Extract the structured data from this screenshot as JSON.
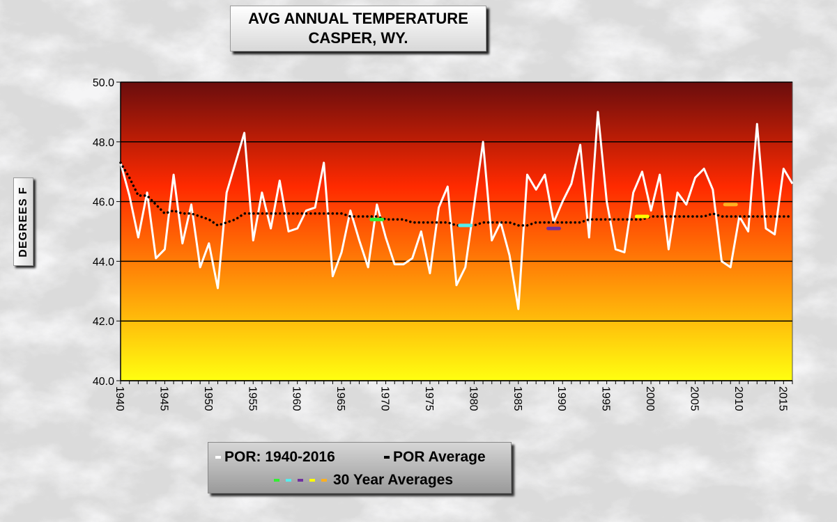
{
  "title_line1": "AVG ANNUAL  TEMPERATURE",
  "title_line2": "CASPER, WY.",
  "ylabel": "DEGREES F",
  "legend": {
    "por_label": "POR: 1940-2016",
    "por_avg_label": "POR Average",
    "thirty_label": "30 Year Averages",
    "thirty_colors": [
      "#33ee33",
      "#55eeee",
      "#7030a0",
      "#ffff00",
      "#ffb020"
    ]
  },
  "colors": {
    "series_line": "#ffffff",
    "por_average": "#000000",
    "gradient_top": "#6a0d0d",
    "gradient_mid": "#ff2a00",
    "gradient_bottom": "#ffff10",
    "gridline": "#000000"
  },
  "chart_data": {
    "type": "line",
    "title": "AVG ANNUAL  TEMPERATURE CASPER, WY.",
    "ylabel": "DEGREES F",
    "ylim": [
      40.0,
      50.0
    ],
    "yticks": [
      "40.0",
      "42.0",
      "44.0",
      "46.0",
      "48.0",
      "50.0"
    ],
    "xlim": [
      1940,
      2016
    ],
    "xticks": [
      "1940",
      "1945",
      "1950",
      "1955",
      "1960",
      "1965",
      "1970",
      "1975",
      "1980",
      "1985",
      "1990",
      "1995",
      "2000",
      "2005",
      "2010",
      "2015"
    ],
    "grid": true,
    "series": [
      {
        "name": "POR: 1940-2016",
        "x": [
          1940,
          1941,
          1942,
          1943,
          1944,
          1945,
          1946,
          1947,
          1948,
          1949,
          1950,
          1951,
          1952,
          1953,
          1954,
          1955,
          1956,
          1957,
          1958,
          1959,
          1960,
          1961,
          1962,
          1963,
          1964,
          1965,
          1966,
          1967,
          1968,
          1969,
          1970,
          1971,
          1972,
          1973,
          1974,
          1975,
          1976,
          1977,
          1978,
          1979,
          1980,
          1981,
          1982,
          1983,
          1984,
          1985,
          1986,
          1987,
          1988,
          1989,
          1990,
          1991,
          1992,
          1993,
          1994,
          1995,
          1996,
          1997,
          1998,
          1999,
          2000,
          2001,
          2002,
          2003,
          2004,
          2005,
          2006,
          2007,
          2008,
          2009,
          2010,
          2011,
          2012,
          2013,
          2014,
          2015,
          2016
        ],
        "y": [
          47.3,
          46.2,
          44.8,
          46.3,
          44.1,
          44.4,
          46.9,
          44.6,
          45.9,
          43.8,
          44.6,
          43.1,
          46.3,
          47.3,
          48.3,
          44.7,
          46.3,
          45.1,
          46.7,
          45.0,
          45.1,
          45.7,
          45.8,
          47.3,
          43.5,
          44.3,
          45.7,
          44.7,
          43.8,
          45.9,
          44.8,
          43.9,
          43.9,
          44.1,
          45.0,
          43.6,
          45.8,
          46.5,
          43.2,
          43.8,
          45.9,
          48.0,
          44.7,
          45.3,
          44.2,
          42.4,
          46.9,
          46.4,
          46.9,
          45.3,
          46.0,
          46.6,
          47.9,
          44.8,
          49.0,
          46.0,
          44.4,
          44.3,
          46.3,
          47.0,
          45.7,
          46.9,
          44.4,
          46.3,
          45.9,
          46.8,
          47.1,
          46.4,
          44.0,
          43.8,
          45.5,
          45.0,
          48.6,
          45.1,
          44.9,
          47.1,
          46.6
        ]
      },
      {
        "name": "POR Average",
        "x": [
          1940,
          1941,
          1942,
          1943,
          1944,
          1945,
          1946,
          1947,
          1948,
          1949,
          1950,
          1951,
          1952,
          1953,
          1954,
          1955,
          1956,
          1957,
          1958,
          1959,
          1960,
          1961,
          1962,
          1963,
          1964,
          1965,
          1966,
          1967,
          1968,
          1969,
          1970,
          1971,
          1972,
          1973,
          1974,
          1975,
          1976,
          1977,
          1978,
          1979,
          1980,
          1981,
          1982,
          1983,
          1984,
          1985,
          1986,
          1987,
          1988,
          1989,
          1990,
          1991,
          1992,
          1993,
          1994,
          1995,
          1996,
          1997,
          1998,
          1999,
          2000,
          2001,
          2002,
          2003,
          2004,
          2005,
          2006,
          2007,
          2008,
          2009,
          2010,
          2011,
          2012,
          2013,
          2014,
          2015,
          2016
        ],
        "y": [
          47.3,
          46.8,
          46.2,
          46.2,
          45.9,
          45.6,
          45.7,
          45.6,
          45.6,
          45.5,
          45.4,
          45.2,
          45.3,
          45.4,
          45.6,
          45.6,
          45.6,
          45.6,
          45.6,
          45.6,
          45.6,
          45.6,
          45.6,
          45.6,
          45.6,
          45.6,
          45.5,
          45.5,
          45.5,
          45.5,
          45.4,
          45.4,
          45.4,
          45.3,
          45.3,
          45.3,
          45.3,
          45.3,
          45.2,
          45.2,
          45.2,
          45.3,
          45.3,
          45.3,
          45.3,
          45.2,
          45.2,
          45.3,
          45.3,
          45.3,
          45.3,
          45.3,
          45.3,
          45.4,
          45.4,
          45.4,
          45.4,
          45.4,
          45.4,
          45.4,
          45.5,
          45.5,
          45.5,
          45.5,
          45.5,
          45.5,
          45.5,
          45.6,
          45.5,
          45.5,
          45.5,
          45.5,
          45.5,
          45.5,
          45.5,
          45.5,
          45.5
        ]
      }
    ],
    "thirty_year_averages": [
      {
        "x": 1969,
        "y": 45.4,
        "color": "#33ee33"
      },
      {
        "x": 1979,
        "y": 45.2,
        "color": "#55eeee"
      },
      {
        "x": 1989,
        "y": 45.1,
        "color": "#7030a0"
      },
      {
        "x": 1999,
        "y": 45.5,
        "color": "#ffff00"
      },
      {
        "x": 2009,
        "y": 45.9,
        "color": "#ffb020"
      }
    ]
  }
}
